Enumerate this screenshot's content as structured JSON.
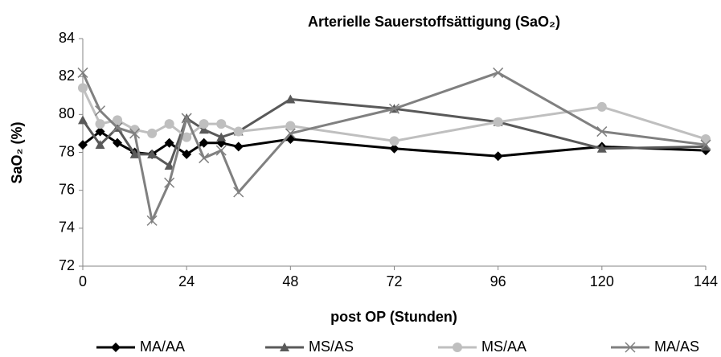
{
  "chart_data": {
    "type": "line",
    "title": "Arterielle Sauerstoffsättigung (SaO₂)",
    "xlabel": "post OP (Stunden)",
    "ylabel": "SaO₂ (%)",
    "x": [
      0,
      4,
      8,
      12,
      16,
      20,
      24,
      28,
      32,
      36,
      48,
      72,
      96,
      120,
      144
    ],
    "series": [
      {
        "name": "MA/AA",
        "color": "#000000",
        "marker": "diamond",
        "values": [
          78.4,
          79.1,
          78.5,
          78.0,
          77.9,
          78.5,
          77.9,
          78.5,
          78.5,
          78.3,
          78.7,
          78.2,
          77.8,
          78.3,
          78.1
        ]
      },
      {
        "name": "MS/AS",
        "color": "#595959",
        "marker": "triangle",
        "values": [
          79.7,
          78.4,
          79.3,
          77.9,
          77.9,
          77.3,
          79.8,
          79.2,
          78.8,
          79.1,
          80.8,
          80.3,
          79.6,
          78.2,
          78.3
        ]
      },
      {
        "name": "MS/AA",
        "color": "#bfbfbf",
        "marker": "circle",
        "values": [
          81.4,
          79.5,
          79.7,
          79.2,
          79.0,
          79.5,
          78.8,
          79.5,
          79.5,
          79.1,
          79.4,
          78.6,
          79.6,
          80.4,
          78.7
        ]
      },
      {
        "name": "MA/AS",
        "color": "#808080",
        "marker": "x",
        "values": [
          82.2,
          80.2,
          79.3,
          79.0,
          74.4,
          76.4,
          79.8,
          77.7,
          78.1,
          75.9,
          79.0,
          80.3,
          82.2,
          79.1,
          78.4
        ]
      }
    ],
    "xlim": [
      0,
      144
    ],
    "xticks": [
      0,
      24,
      48,
      72,
      96,
      120,
      144
    ],
    "ylim": [
      72,
      84
    ],
    "yticks": [
      72,
      74,
      76,
      78,
      80,
      82,
      84
    ],
    "grid": false,
    "legend": "bottom"
  }
}
